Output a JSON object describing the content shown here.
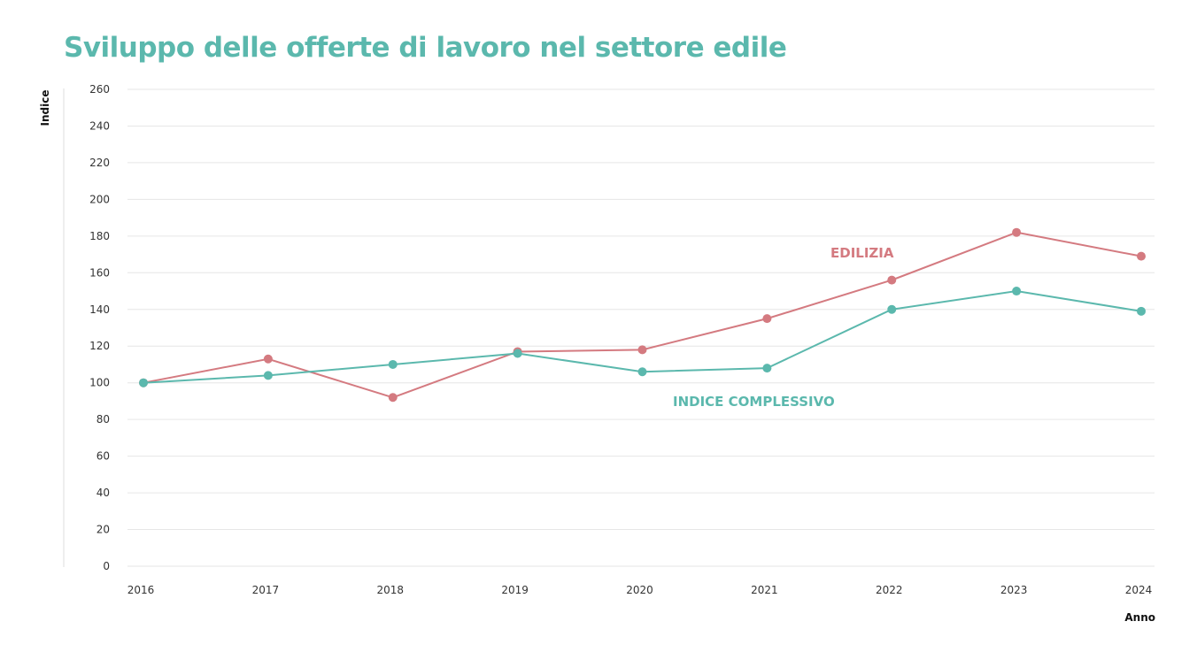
{
  "chart_data": {
    "type": "line",
    "title": "Sviluppo delle offerte di lavoro nel settore edile",
    "xlabel": "Anno",
    "ylabel": "Indice",
    "categories": [
      "2016",
      "2017",
      "2018",
      "2019",
      "2020",
      "2021",
      "2022",
      "2023",
      "2024"
    ],
    "ylim": [
      0,
      260
    ],
    "yticks": [
      0,
      20,
      40,
      60,
      80,
      100,
      120,
      140,
      160,
      180,
      200,
      220,
      240,
      260
    ],
    "grid": true,
    "series": [
      {
        "name": "EDILIZIA",
        "color": "#d47a80",
        "values": [
          100,
          113,
          92,
          117,
          118,
          135,
          156,
          182,
          169
        ]
      },
      {
        "name": "INDICE COMPLESSIVO",
        "color": "#5bb8ad",
        "values": [
          100,
          104,
          110,
          116,
          106,
          108,
          140,
          150,
          139
        ]
      }
    ]
  }
}
